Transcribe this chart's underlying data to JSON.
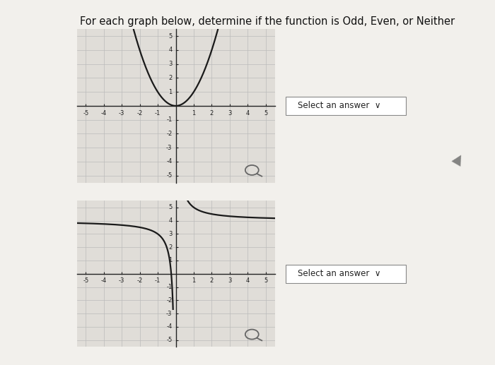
{
  "title": "For each graph below, determine if the function is Odd, Even, or Neither",
  "title_fontsize": 10.5,
  "graph1": {
    "xlim": [
      -5.5,
      5.5
    ],
    "ylim": [
      -5.5,
      5.5
    ],
    "xticks": [
      -5,
      -4,
      -3,
      -2,
      -1,
      1,
      2,
      3,
      4,
      5
    ],
    "yticks": [
      -5,
      -4,
      -3,
      -2,
      -1,
      1,
      2,
      3,
      4,
      5
    ],
    "curve_color": "#1a1a1a",
    "curve_lw": 1.6
  },
  "graph2": {
    "xlim": [
      -5.5,
      5.5
    ],
    "ylim": [
      -5.5,
      5.5
    ],
    "xticks": [
      -5,
      -4,
      -3,
      -2,
      -1,
      1,
      2,
      3,
      4,
      5
    ],
    "yticks": [
      -5,
      -4,
      -3,
      -2,
      -1,
      1,
      2,
      3,
      4,
      5
    ],
    "curve_color": "#1a1a1a",
    "curve_lw": 1.6
  },
  "grid_color": "#bbbbbb",
  "grid_lw": 0.5,
  "axis_color": "#222222",
  "graph_bg": "#e0ddd8",
  "page_bg": "#f2f0ec",
  "left_bar_color": "#c8c4be",
  "select_text": "Select an answer",
  "select_fontsize": 8.5,
  "tick_fontsize": 6.0
}
